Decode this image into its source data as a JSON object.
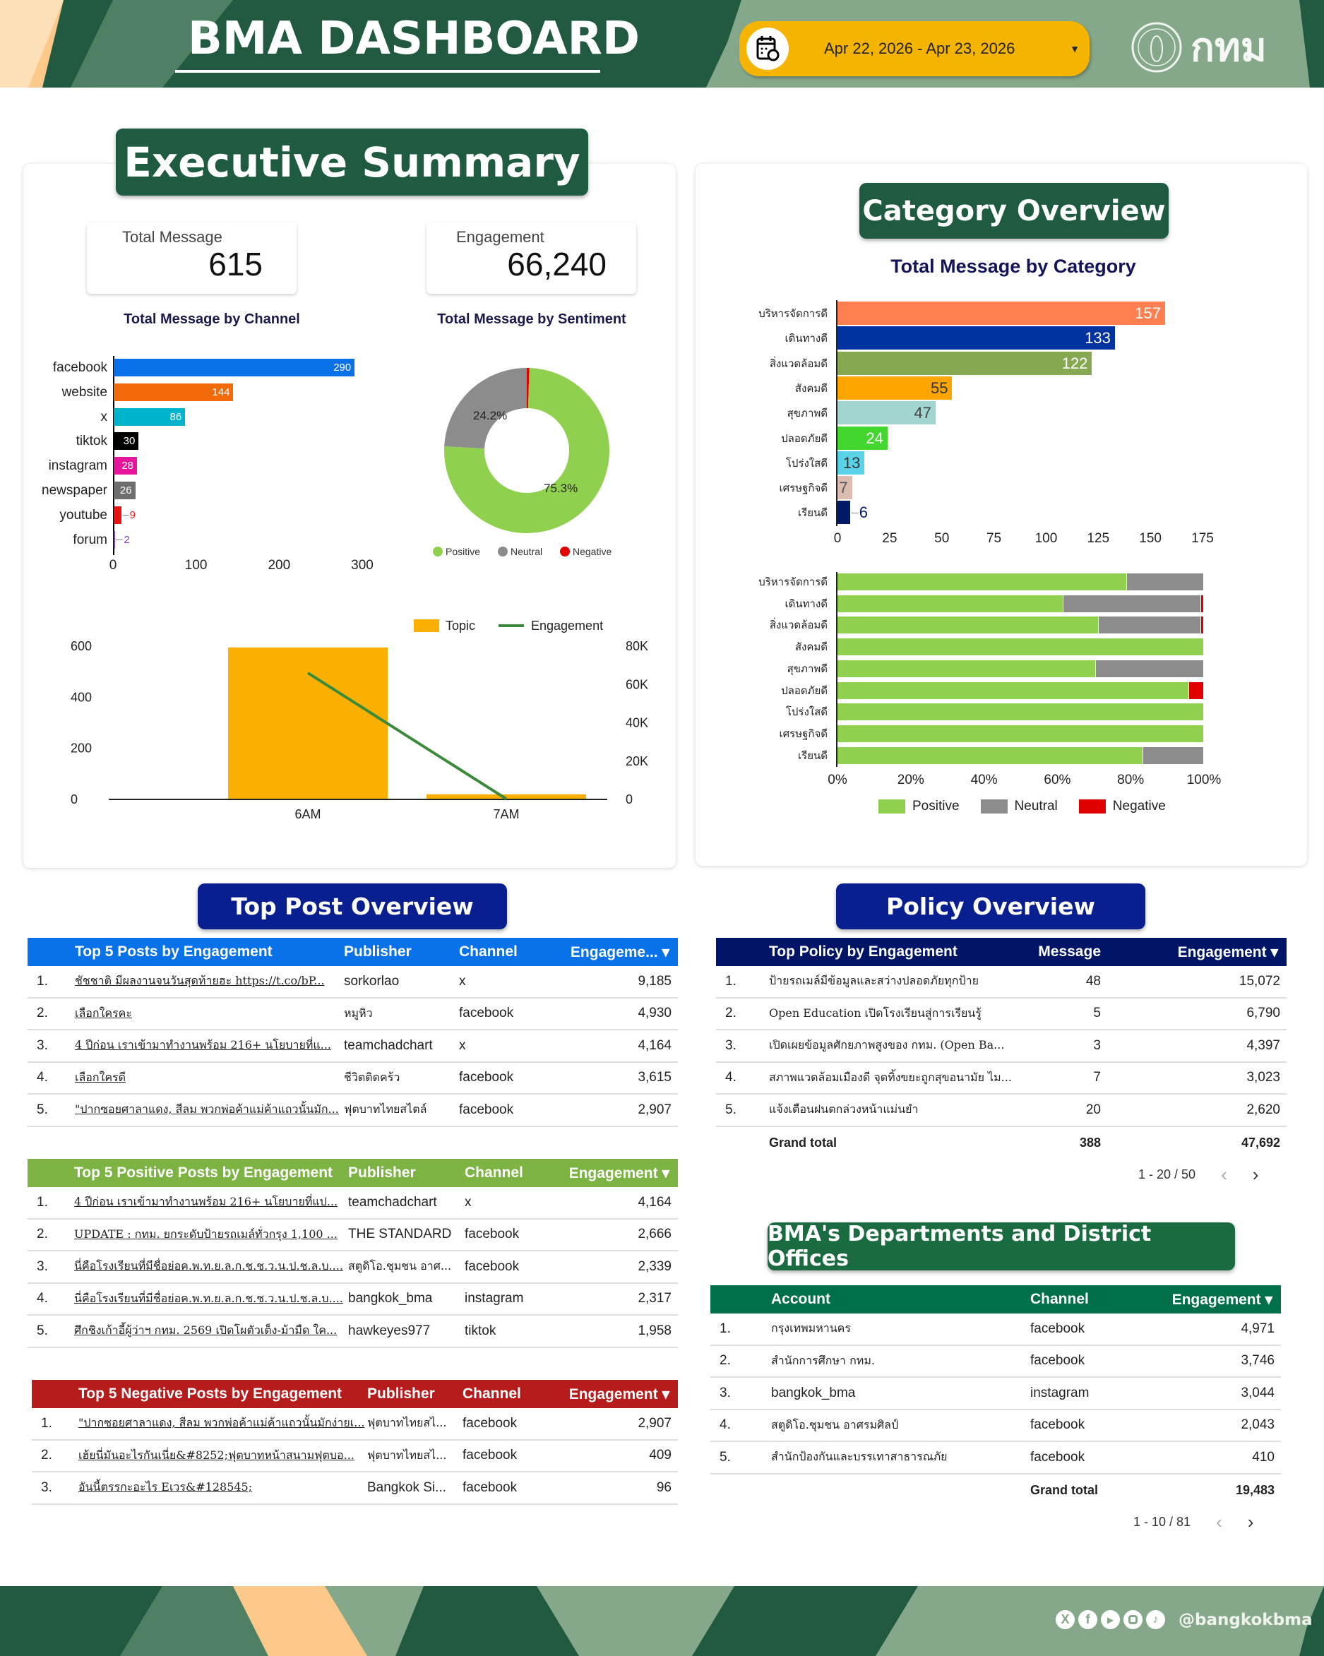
{
  "header": {
    "title": "BMA DASHBOARD",
    "date_range": "Apr 22, 2026 - Apr 23, 2026",
    "logo_text": "กทม"
  },
  "colors": {
    "header_dark_green": "#225a41",
    "header_sage": "#86a88a",
    "header_peach": "#fcc98a",
    "date_pill": "#f4b400"
  },
  "executive_summary": {
    "title": "Executive Summary",
    "total_message": {
      "label": "Total Message",
      "value": "615"
    },
    "engagement": {
      "label": "Engagement",
      "value": "66,240"
    },
    "channel_chart_title": "Total Message by Channel",
    "sentiment_chart_title": "Total Message by Sentiment"
  },
  "category_overview": {
    "title": "Category Overview",
    "subtitle": "Total Message by Category"
  },
  "chart_data": [
    {
      "type": "bar",
      "orientation": "horizontal",
      "title": "Total Message by Channel",
      "categories": [
        "facebook",
        "website",
        "x",
        "tiktok",
        "instagram",
        "newspaper",
        "youtube",
        "forum"
      ],
      "values": [
        290,
        144,
        86,
        30,
        28,
        26,
        9,
        2
      ],
      "colors": [
        "#0a72e8",
        "#f26b0a",
        "#00b3cc",
        "#000000",
        "#e6159c",
        "#6e6e6e",
        "#e81414",
        "#8b3fc9"
      ],
      "xticks": [
        "0",
        "100",
        "200",
        "300"
      ],
      "xlim": [
        0,
        300
      ]
    },
    {
      "type": "pie",
      "donut": true,
      "title": "Total Message by Sentiment",
      "labels": [
        "Negative",
        "Positive",
        "Neutral"
      ],
      "values": [
        0.5,
        75.3,
        24.2
      ],
      "colors": [
        "#e00000",
        "#8fd14f",
        "#8c8c8c"
      ],
      "data_labels": [
        "",
        "75.3%",
        "24.2%"
      ],
      "legend": [
        "Positive",
        "Neutral",
        "Negative"
      ],
      "legend_colors": [
        "#8fd14f",
        "#8c8c8c",
        "#e00000"
      ],
      "legend_position": "bottom"
    },
    {
      "type": "bar+line",
      "categories": [
        "6AM",
        "7AM"
      ],
      "series": [
        {
          "name": "Topic",
          "type": "bar",
          "axis": "left",
          "values": [
            595,
            20
          ],
          "color": "#fbb000"
        },
        {
          "name": "Engagement",
          "type": "line",
          "axis": "right",
          "values": [
            66000,
            240
          ],
          "color": "#3a8a3a"
        }
      ],
      "yticks_left": [
        "0",
        "200",
        "400",
        "600"
      ],
      "ylim_left": [
        0,
        600
      ],
      "yticks_right": [
        "0",
        "20K",
        "40K",
        "60K",
        "80K"
      ],
      "ylim_right": [
        0,
        80000
      ],
      "legend_position": "top-right"
    },
    {
      "type": "bar",
      "orientation": "horizontal",
      "title": "Total Message by Category",
      "categories": [
        "บริหารจัดการดี",
        "เดินทางดี",
        "สิ่งแวดล้อมดี",
        "สังคมดี",
        "สุขภาพดี",
        "ปลอดภัยดี",
        "โปร่งใสดี",
        "เศรษฐกิจดี",
        "เรียนดี"
      ],
      "values": [
        157,
        133,
        122,
        55,
        47,
        24,
        13,
        7,
        6
      ],
      "colors": [
        "#ff7f50",
        "#0032a0",
        "#86a851",
        "#ffa500",
        "#a2d5cf",
        "#43d62e",
        "#5ad3e8",
        "#dcbcb0",
        "#001a66"
      ],
      "label_colors": [
        "#ffffff",
        "#ffffff",
        "#ffffff",
        "#333333",
        "#444444",
        "#ffffff",
        "#333333",
        "#555555",
        "#001a66"
      ],
      "xticks": [
        "0",
        "25",
        "50",
        "75",
        "100",
        "125",
        "150",
        "175"
      ],
      "xlim": [
        0,
        175
      ]
    },
    {
      "type": "bar",
      "orientation": "horizontal",
      "stacked": "percent",
      "categories": [
        "บริหารจัดการดี",
        "เดินทางดี",
        "สิ่งแวดล้อมดี",
        "สังคมดี",
        "สุขภาพดี",
        "ปลอดภัยดี",
        "โปร่งใสดี",
        "เศรษฐกิจดี",
        "เรียนดี"
      ],
      "series": [
        {
          "name": "Positive",
          "values": [
            79,
            61.7,
            71.3,
            100,
            70.5,
            96,
            100,
            100,
            83.4
          ],
          "color": "#8fd14f"
        },
        {
          "name": "Neutral",
          "values": [
            21,
            37.6,
            28,
            0,
            29.5,
            0,
            0,
            0,
            16.6
          ],
          "color": "#8c8c8c"
        },
        {
          "name": "Negative",
          "values": [
            0,
            0.7,
            0.7,
            0,
            0,
            4,
            0,
            0,
            0
          ],
          "color": "#e00000"
        }
      ],
      "xticks": [
        "0%",
        "20%",
        "40%",
        "60%",
        "80%",
        "100%"
      ],
      "xlim": [
        0,
        100
      ],
      "legend_position": "bottom"
    }
  ],
  "top_post_overview": {
    "title": "Top Post Overview",
    "top_posts": {
      "color": "#0a72e8",
      "headers": [
        "",
        "Top 5 Posts by Engagement",
        "Publisher",
        "Channel",
        "Engageme... ▾"
      ],
      "rows": [
        [
          "1.",
          "ชัชชาติ มีผลงานจนวันสุดท้ายฮะ https://t.co/bP...",
          "sorkorlao",
          "x",
          "9,185"
        ],
        [
          "2.",
          "เลือกใครคะ",
          "หมูหิว",
          "facebook",
          "4,930"
        ],
        [
          "3.",
          "4 ปีก่อน เราเข้ามาทำงานพร้อม 216+ นโยบายที่แ...",
          "teamchadchart",
          "x",
          "4,164"
        ],
        [
          "4.",
          "เลือกใครดี",
          "ชีวิตติดคร้ว",
          "facebook",
          "3,615"
        ],
        [
          "5.",
          "\"ปากซอยศาลาแดง, สีลม พวกพ่อค้าแม่ค้าแถวนั้นมัก...",
          "ฟุตบาทไทยสไตล์",
          "facebook",
          "2,907"
        ]
      ]
    },
    "positive_posts": {
      "color": "#7cb342",
      "headers": [
        "",
        "Top 5 Positive Posts by Engagement",
        "Publisher",
        "Channel",
        "Engagement ▾"
      ],
      "rows": [
        [
          "1.",
          "4 ปีก่อน เราเข้ามาทำงานพร้อม 216+ นโยบายที่แป...",
          "teamchadchart",
          "x",
          "4,164"
        ],
        [
          "2.",
          "UPDATE : กทม. ยกระดับป้ายรถเมล์ทั่วกรุง 1,100 ...",
          "THE STANDARD",
          "facebook",
          "2,666"
        ],
        [
          "3.",
          "นี่คือโรงเรียนที่มีชื่อย่อค.พ.ท.ย.ล.ก.ช.ช.ว.น.ป.ช.ล.บ....",
          "สตูดิโอ.ชุมชน อาศ...",
          "facebook",
          "2,339"
        ],
        [
          "4.",
          "นี่คือโรงเรียนที่มีชื่อย่อค.พ.ท.ย.ล.ก.ช.ช.ว.น.ป.ช.ล.บ....",
          "bangkok_bma",
          "instagram",
          "2,317"
        ],
        [
          "5.",
          "ศึกชิงเก้าอี้ผู้ว่าฯ กทม. 2569 เปิดโผตัวเต็ง-ม้ามืด ใค...",
          "hawkeyes977",
          "tiktok",
          "1,958"
        ]
      ]
    },
    "negative_posts": {
      "color": "#b71c1c",
      "headers": [
        "",
        "Top 5 Negative Posts by Engagement",
        "Publisher",
        "Channel",
        "Engagement ▾"
      ],
      "rows": [
        [
          "1.",
          "\"ปากซอยศาลาแดง, สีลม พวกพ่อค้าแม่ค้าแถวนั้นมักง่ายเ...",
          "ฟุตบาทไทยสไ...",
          "facebook",
          "2,907"
        ],
        [
          "2.",
          "เฮ้ยนี่มันอะไรกันเนี่ย&#8252;ฟุตบาทหน้าสนามฟุตบอ...",
          "ฟุตบาทไทยสไ...",
          "facebook",
          "409"
        ],
        [
          "3.",
          "อันนี้ตรรกะอะไร Eเวร&#128545;",
          "Bangkok Si...",
          "facebook",
          "96"
        ]
      ]
    }
  },
  "policy_overview": {
    "title": "Policy Overview",
    "color": "#001566",
    "headers": [
      "",
      "Top Policy by Engagement",
      "Message",
      "Engagement ▾"
    ],
    "rows": [
      [
        "1.",
        "ป้ายรถเมล์มีข้อมูลและสว่างปลอดภัยทุกป้าย",
        "48",
        "15,072"
      ],
      [
        "2.",
        "Open Education เปิดโรงเรียนสู่การเรียนรู้",
        "5",
        "6,790"
      ],
      [
        "3.",
        "เปิดเผยข้อมูลศักยภาพสูงของ กทม. (Open Ba...",
        "3",
        "4,397"
      ],
      [
        "4.",
        "สภาพแวดล้อมเมืองดี จุดทิ้งขยะถูกสุขอนามัย ไม...",
        "7",
        "3,023"
      ],
      [
        "5.",
        "แจ้งเตือนฝนตกล่วงหน้าแม่นยำ",
        "20",
        "2,620"
      ]
    ],
    "grand_total": {
      "label": "Grand total",
      "message": "388",
      "engagement": "47,692"
    },
    "pagination": "1 - 20 / 50"
  },
  "departments": {
    "title": "BMA's Departments and District Offices",
    "color": "#00704a",
    "headers": [
      "",
      "Account",
      "Channel",
      "Engagement ▾"
    ],
    "rows": [
      [
        "1.",
        "กรุงเทพมหานคร",
        "facebook",
        "4,971"
      ],
      [
        "2.",
        "สำนักการศึกษา กทม.",
        "facebook",
        "3,746"
      ],
      [
        "3.",
        "bangkok_bma",
        "instagram",
        "3,044"
      ],
      [
        "4.",
        "สตูดิโอ.ชุมชน อาศรมศิลป์",
        "facebook",
        "2,043"
      ],
      [
        "5.",
        "สำนักป้องกันและบรรเทาสาธารณภัย",
        "facebook",
        "410"
      ]
    ],
    "grand_total": {
      "label": "Grand total",
      "engagement": "19,483"
    },
    "pagination": "1 - 10 / 81"
  },
  "footer": {
    "handle": "@bangkokbma",
    "social_icons": [
      "x-icon",
      "facebook-icon",
      "youtube-icon",
      "instagram-icon",
      "tiktok-icon"
    ]
  },
  "pager": {
    "prev": "‹",
    "next": "›"
  }
}
